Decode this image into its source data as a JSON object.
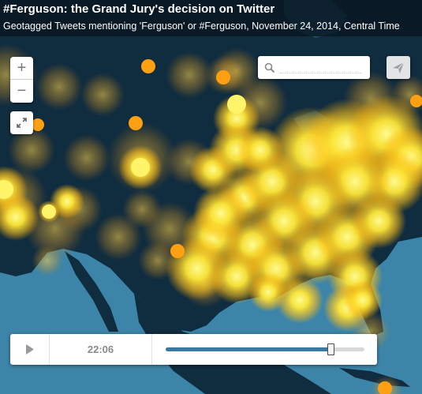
{
  "header": {
    "title": "#Ferguson: the Grand Jury's decision on Twitter",
    "subtitle": "Geotagged Tweets mentioning 'Ferguson' or #Ferguson, November 24, 2014, Central Time"
  },
  "controls": {
    "zoom_in_label": "+",
    "zoom_out_label": "−",
    "search_placeholder": "",
    "search_value": ""
  },
  "player": {
    "time": "22:06",
    "progress": 0.825
  },
  "colors": {
    "land": "#102c3f",
    "ocean": "#3d85a8",
    "dot_core": "#ffe64a",
    "dot_dim": "#ff9d10",
    "accent": "#3a78a4"
  }
}
